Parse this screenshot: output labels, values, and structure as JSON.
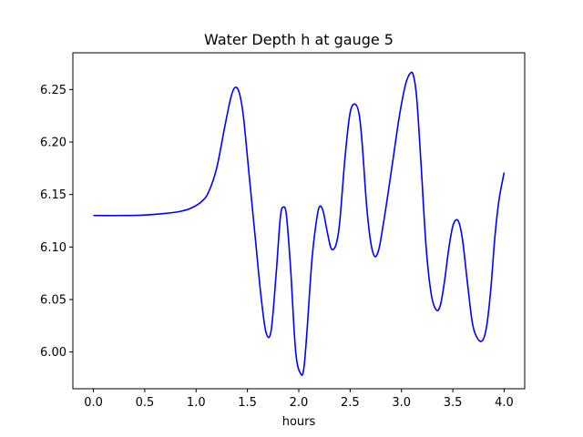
{
  "chart_data": {
    "type": "line",
    "title": "Water Depth h at gauge 5",
    "xlabel": "hours",
    "ylabel": "",
    "xlim": [
      -0.2,
      4.2
    ],
    "ylim": [
      5.965,
      6.285
    ],
    "xticks": [
      0.0,
      0.5,
      1.0,
      1.5,
      2.0,
      2.5,
      3.0,
      3.5,
      4.0
    ],
    "xtick_labels": [
      "0.0",
      "0.5",
      "1.0",
      "1.5",
      "2.0",
      "2.5",
      "3.0",
      "3.5",
      "4.0"
    ],
    "yticks": [
      6.0,
      6.05,
      6.1,
      6.15,
      6.2,
      6.25
    ],
    "ytick_labels": [
      "6.00",
      "6.05",
      "6.10",
      "6.15",
      "6.20",
      "6.25"
    ],
    "grid": false,
    "legend": "none",
    "series": [
      {
        "color": "#0000ff",
        "x": [
          0.0,
          0.3,
          0.5,
          0.7,
          0.85,
          0.95,
          1.05,
          1.12,
          1.2,
          1.28,
          1.34,
          1.38,
          1.42,
          1.46,
          1.52,
          1.58,
          1.63,
          1.68,
          1.73,
          1.78,
          1.82,
          1.85,
          1.88,
          1.92,
          1.97,
          2.02,
          2.05,
          2.08,
          2.13,
          2.18,
          2.21,
          2.24,
          2.27,
          2.31,
          2.34,
          2.37,
          2.4,
          2.45,
          2.5,
          2.55,
          2.59,
          2.62,
          2.66,
          2.7,
          2.74,
          2.78,
          2.82,
          2.86,
          2.92,
          2.98,
          3.04,
          3.09,
          3.12,
          3.15,
          3.19,
          3.24,
          3.29,
          3.34,
          3.38,
          3.42,
          3.46,
          3.5,
          3.54,
          3.57,
          3.6,
          3.64,
          3.69,
          3.74,
          3.79,
          3.83,
          3.87,
          3.91,
          3.95,
          4.0
        ],
        "y": [
          6.13,
          6.13,
          6.1305,
          6.132,
          6.134,
          6.137,
          6.143,
          6.152,
          6.175,
          6.215,
          6.243,
          6.252,
          6.247,
          6.225,
          6.165,
          6.105,
          6.055,
          6.019,
          6.02,
          6.075,
          6.128,
          6.138,
          6.13,
          6.08,
          6.0,
          5.979,
          5.985,
          6.02,
          6.09,
          6.13,
          6.139,
          6.133,
          6.118,
          6.1,
          6.098,
          6.105,
          6.125,
          6.185,
          6.228,
          6.236,
          6.225,
          6.195,
          6.14,
          6.105,
          6.091,
          6.098,
          6.12,
          6.145,
          6.185,
          6.225,
          6.255,
          6.266,
          6.262,
          6.24,
          6.18,
          6.1,
          6.055,
          6.04,
          6.045,
          6.068,
          6.098,
          6.12,
          6.126,
          6.12,
          6.103,
          6.068,
          6.028,
          6.013,
          6.011,
          6.025,
          6.06,
          6.11,
          6.145,
          6.171
        ]
      }
    ]
  }
}
